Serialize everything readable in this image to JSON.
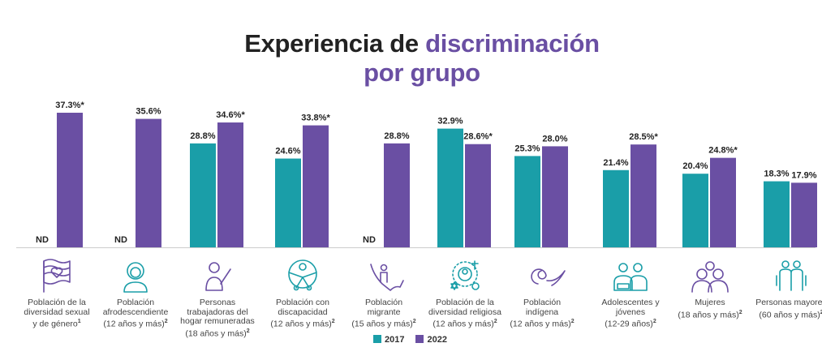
{
  "title": {
    "part1": "Experiencia de ",
    "part2": "discriminación",
    "line2": "por grupo"
  },
  "colors": {
    "2017": "#1a9ea8",
    "2022": "#6a4fa3",
    "title_accent": "#6a4fa3"
  },
  "chart_data": {
    "type": "bar",
    "title": "Experiencia de discriminación por grupo",
    "ylim": [
      0,
      40
    ],
    "grid": false,
    "legend_position": "bottom",
    "categories": [
      {
        "lines": [
          "Población de la",
          "diversidad sexual",
          "y de género"
        ],
        "sup": "1",
        "icon": "pride-flag-heart-icon"
      },
      {
        "lines": [
          "Población",
          "afrodescendiente",
          "(12 años y más)"
        ],
        "sup": "2",
        "icon": "afro-person-icon"
      },
      {
        "lines": [
          "Personas",
          "trabajadoras del",
          "hogar remuneradas",
          "(18 años y más)"
        ],
        "sup": "2",
        "icon": "domestic-worker-broom-icon"
      },
      {
        "lines": [
          "Población con",
          "discapacidad",
          "(12 años y más)"
        ],
        "sup": "2",
        "icon": "accessibility-icon"
      },
      {
        "lines": [
          "Población",
          "migrante",
          "(15 años y más)"
        ],
        "sup": "2",
        "icon": "migrant-map-icon"
      },
      {
        "lines": [
          "Población de la",
          "diversidad religiosa",
          "(12 años y más)"
        ],
        "sup": "2",
        "icon": "religious-symbols-icon"
      },
      {
        "lines": [
          "Población",
          "indígena",
          "(12 años y más)"
        ],
        "sup": "2",
        "icon": "indigenous-glyph-icon"
      },
      {
        "lines": [
          "Adolescentes y",
          "jóvenes",
          "(12-29 años)"
        ],
        "sup": "2",
        "icon": "youth-reading-icon"
      },
      {
        "lines": [
          "Mujeres",
          "(18 años y más)"
        ],
        "sup": "2",
        "icon": "women-group-icon"
      },
      {
        "lines": [
          "Personas mayores",
          "(60 años y más)"
        ],
        "sup": "2",
        "icon": "elderly-couple-icon"
      }
    ],
    "series": [
      {
        "name": "2017",
        "values": [
          null,
          null,
          28.8,
          24.6,
          null,
          32.9,
          25.3,
          21.4,
          20.4,
          18.3
        ],
        "labels": [
          "ND",
          "ND",
          "28.8%",
          "24.6%",
          "ND",
          "32.9%",
          "25.3%",
          "21.4%",
          "20.4%",
          "18.3%"
        ]
      },
      {
        "name": "2022",
        "values": [
          37.3,
          35.6,
          34.6,
          33.8,
          28.8,
          28.6,
          28.0,
          28.5,
          24.8,
          17.9
        ],
        "labels": [
          "37.3%*",
          "35.6%",
          "34.6%*",
          "33.8%*",
          "28.8%",
          "28.6%*",
          "28.0%",
          "28.5%*",
          "24.8%*",
          "17.9%"
        ]
      }
    ]
  }
}
